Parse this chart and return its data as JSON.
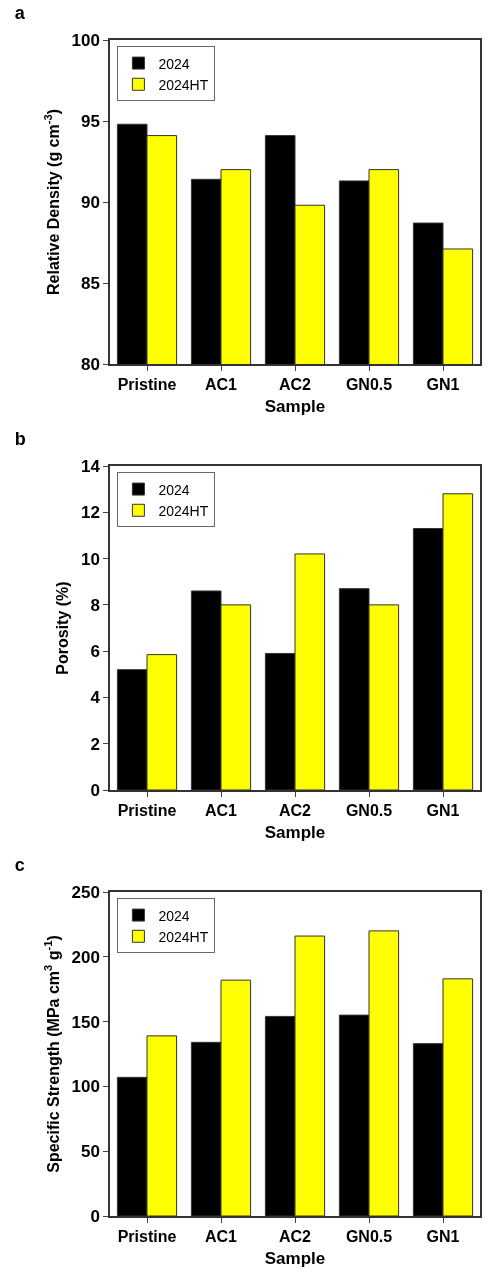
{
  "chart_data": [
    {
      "type": "bar",
      "title": "a",
      "xlabel": "Sample",
      "ylabel": "Relative Density (g cm$^{-3}$)",
      "categories": [
        "Pristine",
        "AC1",
        "AC2",
        "GN0.5",
        "GN1"
      ],
      "series": [
        {
          "name": "2024",
          "color": "#000000",
          "values": [
            94.8,
            91.4,
            94.1,
            91.3,
            88.7
          ]
        },
        {
          "name": "2024HT",
          "color": "#ffff00",
          "values": [
            94.1,
            92.0,
            89.8,
            92.0,
            87.1
          ]
        }
      ],
      "ylim": [
        80,
        100
      ],
      "yticks": [
        80,
        85,
        90,
        95,
        100
      ],
      "grid": false,
      "legend": "top left"
    },
    {
      "type": "bar",
      "title": "b",
      "xlabel": "Sample",
      "ylabel": "Porosity (%)",
      "categories": [
        "Pristine",
        "AC1",
        "AC2",
        "GN0.5",
        "GN1"
      ],
      "series": [
        {
          "name": "2024",
          "color": "#000000",
          "values": [
            5.2,
            8.6,
            5.9,
            8.7,
            11.3
          ]
        },
        {
          "name": "2024HT",
          "color": "#ffff00",
          "values": [
            5.85,
            8.0,
            10.2,
            8.0,
            12.8
          ]
        }
      ],
      "ylim": [
        0,
        14
      ],
      "yticks": [
        0,
        2,
        4,
        6,
        8,
        10,
        12,
        14
      ],
      "grid": false,
      "legend": "top left"
    },
    {
      "type": "bar",
      "title": "c",
      "xlabel": "Sample",
      "ylabel": "Specific Strength (MPa cm$^{3}$ g$^{-1}$)",
      "categories": [
        "Pristine",
        "AC1",
        "AC2",
        "GN0.5",
        "GN1"
      ],
      "series": [
        {
          "name": "2024",
          "color": "#000000",
          "values": [
            107,
            134,
            154,
            155,
            133
          ]
        },
        {
          "name": "2024HT",
          "color": "#ffff00",
          "values": [
            139,
            182,
            216,
            220,
            183
          ]
        }
      ],
      "ylim": [
        0,
        250
      ],
      "yticks": [
        0,
        50,
        100,
        150,
        200,
        250
      ],
      "grid": false,
      "legend": "top left"
    }
  ]
}
